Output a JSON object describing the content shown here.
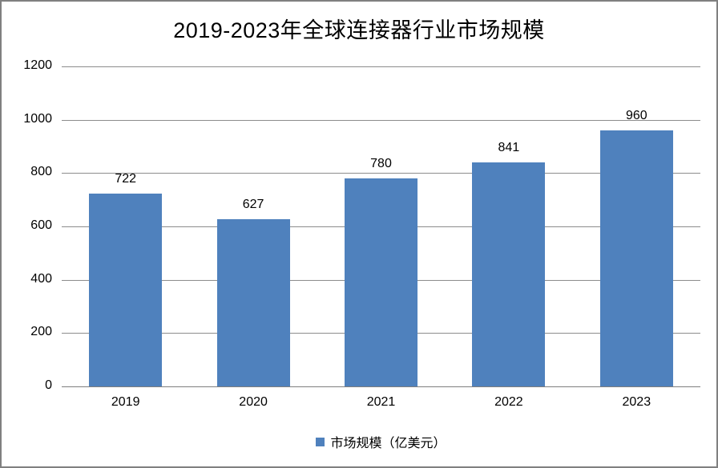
{
  "chart_data": {
    "type": "bar",
    "title": "2019-2023年全球连接器行业市场规模",
    "categories": [
      "2019",
      "2020",
      "2021",
      "2022",
      "2023"
    ],
    "values": [
      722,
      627,
      780,
      841,
      960
    ],
    "series_name": "市场规模（亿美元）",
    "xlabel": "",
    "ylabel": "",
    "ylim": [
      0,
      1200
    ],
    "yticks": [
      0,
      200,
      400,
      600,
      800,
      1000,
      1200
    ],
    "grid": "horizontal",
    "data_labels": true,
    "legend_position": "bottom",
    "bar_color": "#4F81BD",
    "gridline_color": "#8C8C8C",
    "frame_border_color": "#808080",
    "background_color": "#FFFFFF",
    "text_color": "#000000"
  }
}
